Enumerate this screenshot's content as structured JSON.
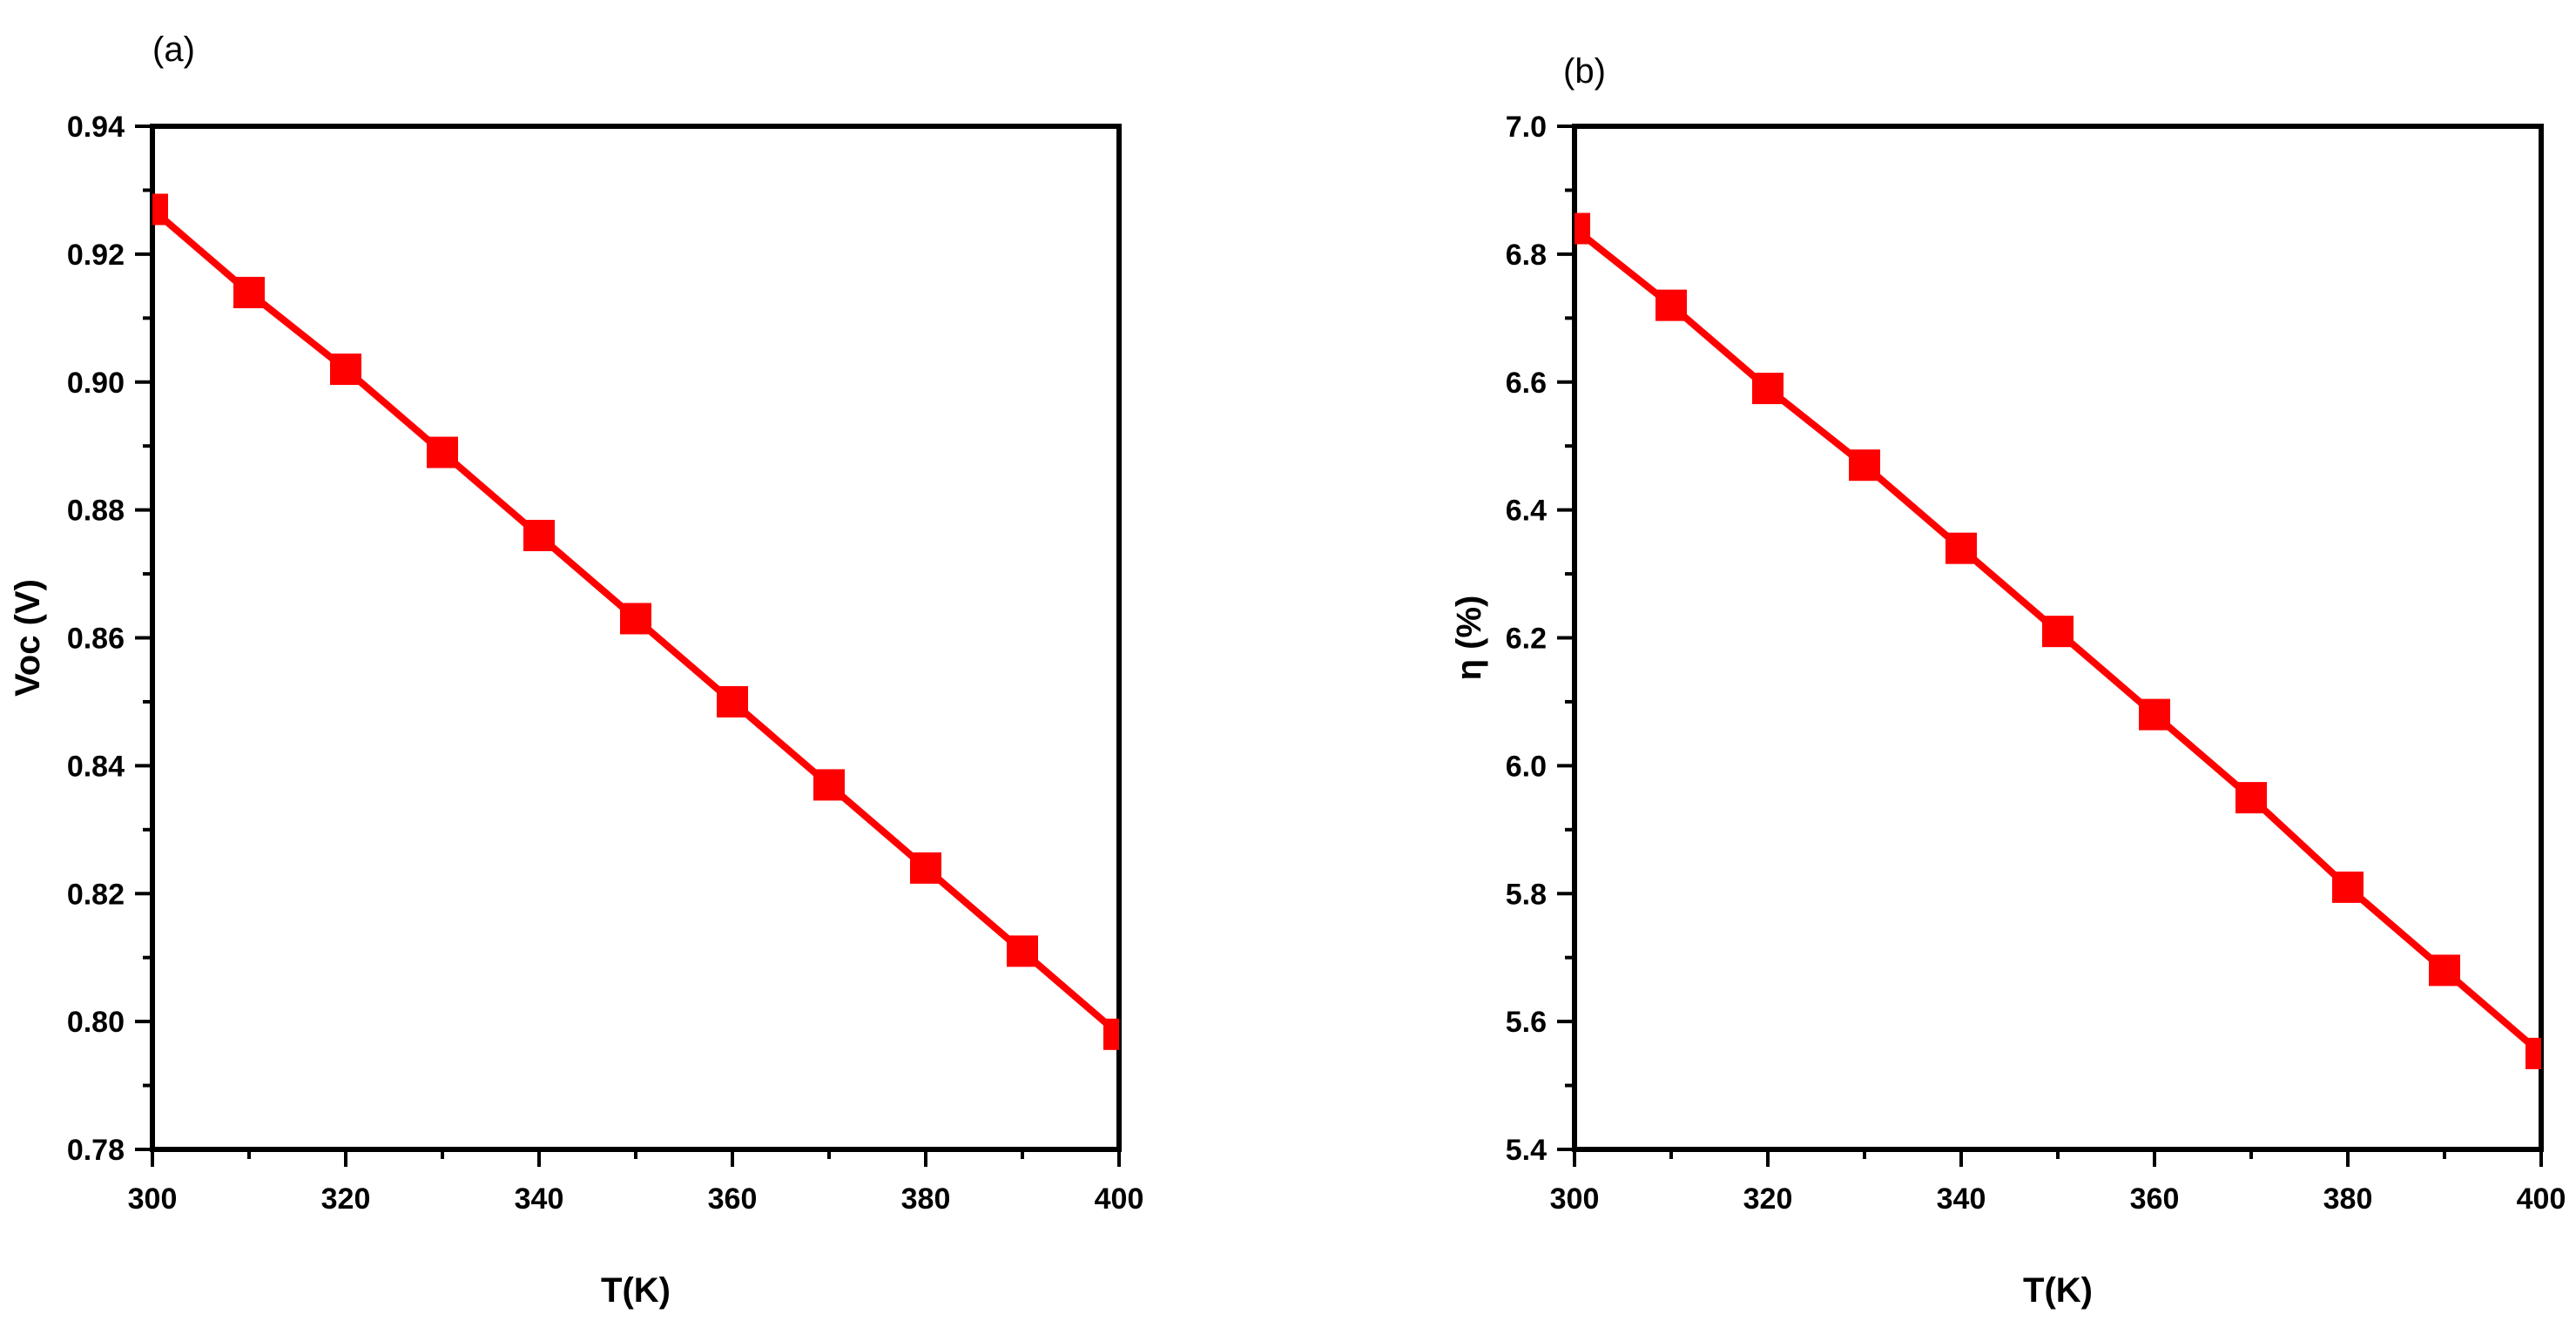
{
  "chart_data": [
    {
      "type": "line",
      "panel_label": "(a)",
      "xlabel": "T(K)",
      "ylabel": "Voc (V)",
      "xlim": [
        300,
        400
      ],
      "ylim": [
        0.78,
        0.94
      ],
      "x_ticks": [
        "300",
        "320",
        "340",
        "360",
        "380",
        "400"
      ],
      "y_ticks": [
        "0.78",
        "0.80",
        "0.82",
        "0.84",
        "0.86",
        "0.88",
        "0.90",
        "0.92",
        "0.94"
      ],
      "grid": false,
      "marker": "square",
      "color": "#ff0000",
      "x": [
        300,
        310,
        320,
        330,
        340,
        350,
        360,
        370,
        380,
        390,
        400
      ],
      "y": [
        0.927,
        0.914,
        0.902,
        0.889,
        0.876,
        0.863,
        0.85,
        0.837,
        0.824,
        0.811,
        0.798
      ]
    },
    {
      "type": "line",
      "panel_label": "(b)",
      "xlabel": "T(K)",
      "ylabel": "η (%)",
      "xlim": [
        300,
        400
      ],
      "ylim": [
        5.4,
        7.0
      ],
      "x_ticks": [
        "300",
        "320",
        "340",
        "360",
        "380",
        "400"
      ],
      "y_ticks": [
        "5.4",
        "5.6",
        "5.8",
        "6.0",
        "6.2",
        "6.4",
        "6.6",
        "6.8",
        "7.0"
      ],
      "grid": false,
      "marker": "square",
      "color": "#ff0000",
      "x": [
        300,
        310,
        320,
        330,
        340,
        350,
        360,
        370,
        380,
        390,
        400
      ],
      "y": [
        6.84,
        6.72,
        6.59,
        6.47,
        6.34,
        6.21,
        6.08,
        5.95,
        5.81,
        5.68,
        5.55
      ]
    }
  ]
}
